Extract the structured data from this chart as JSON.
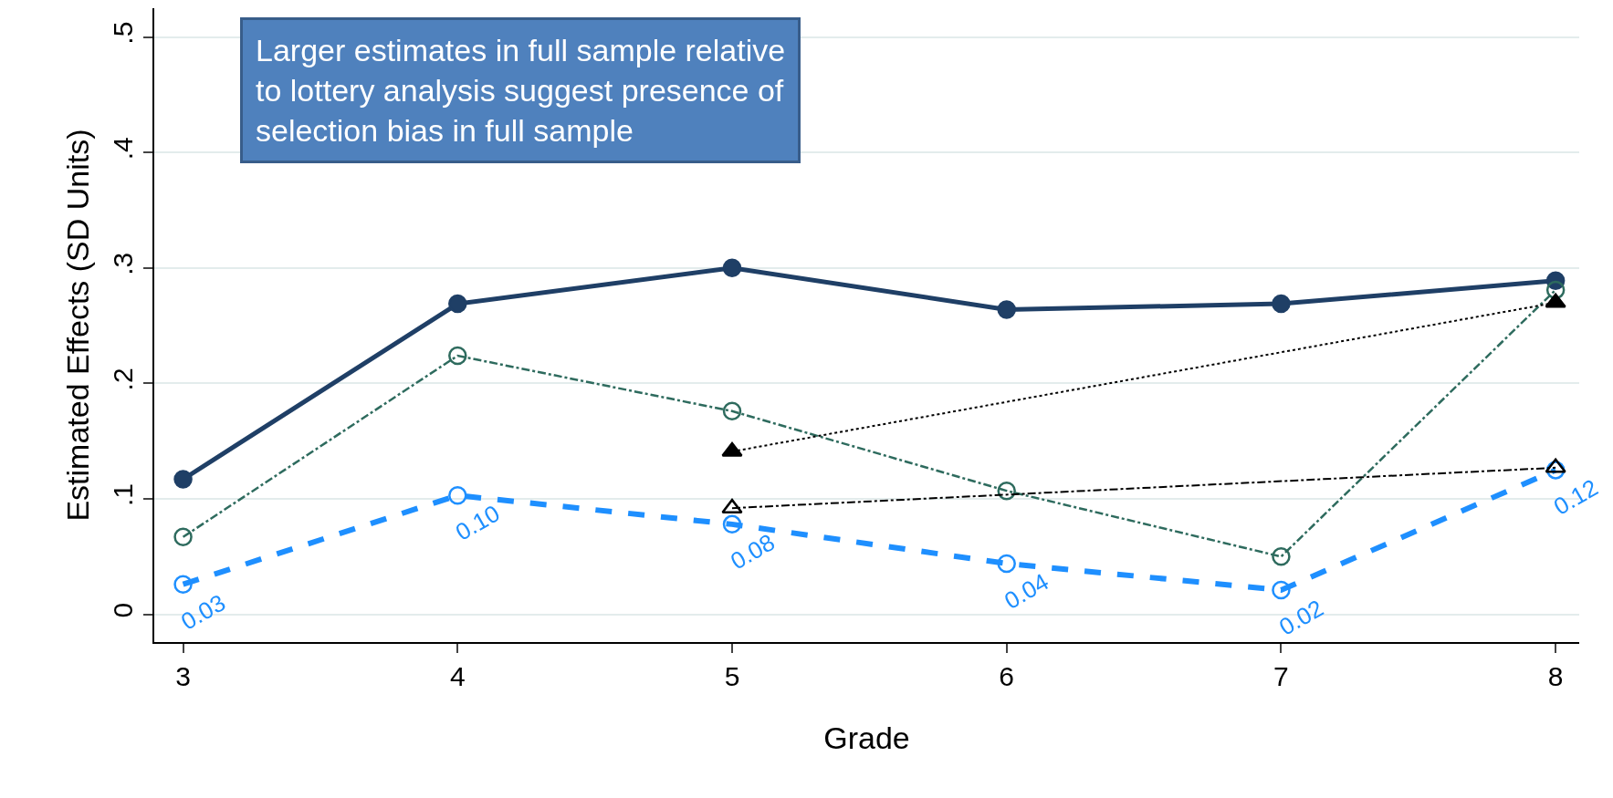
{
  "chart_data": {
    "type": "line",
    "xlabel": "Grade",
    "ylabel": "Estimated Effects (SD Units)",
    "x": [
      3,
      4,
      5,
      6,
      7,
      8
    ],
    "xlim": [
      2.895,
      8.086
    ],
    "xticks": [
      3,
      4,
      5,
      6,
      7,
      8
    ],
    "ylim": [
      -0.024,
      0.525
    ],
    "yticks": [
      0,
      {
        "value": 0.1,
        "label": ".1"
      },
      {
        "value": 0.2,
        "label": ".2"
      },
      {
        "value": 0.3,
        "label": ".3"
      },
      {
        "value": 0.4,
        "label": ".4"
      },
      {
        "value": 0.5,
        "label": ".5"
      }
    ],
    "grid": "y",
    "series": [
      {
        "color": "#1f3f66",
        "marker": "circle",
        "line_style": "solid",
        "values": [
          0.117,
          0.269,
          0.3,
          0.264,
          0.269,
          0.289
        ]
      },
      {
        "color": "#2e6b5e",
        "marker": "circle",
        "line_style": "dashdot",
        "values": [
          0.067,
          0.224,
          0.176,
          0.107,
          0.05,
          0.281
        ]
      },
      {
        "color": "#1e8fff",
        "marker": "circle",
        "line_style": "dashed",
        "values": [
          0.026,
          0.103,
          0.078,
          0.044,
          0.021,
          0.125
        ],
        "value_labels": [
          "0.03",
          "0.10",
          "0.08",
          "0.04",
          "0.02",
          "0.12"
        ]
      },
      {
        "color": "#000000",
        "marker": "triangle",
        "line_style": "dotted",
        "values": [
          null,
          null,
          0.141,
          null,
          null,
          0.27
        ]
      },
      {
        "color": "#000000",
        "marker": "triangle",
        "line_style": "dashdot",
        "values": [
          null,
          null,
          0.092,
          null,
          null,
          0.127
        ]
      }
    ],
    "annotations": [
      "Larger estimates in full sample relative\nto lottery analysis suggest presence of\nselection bias in full sample"
    ]
  }
}
